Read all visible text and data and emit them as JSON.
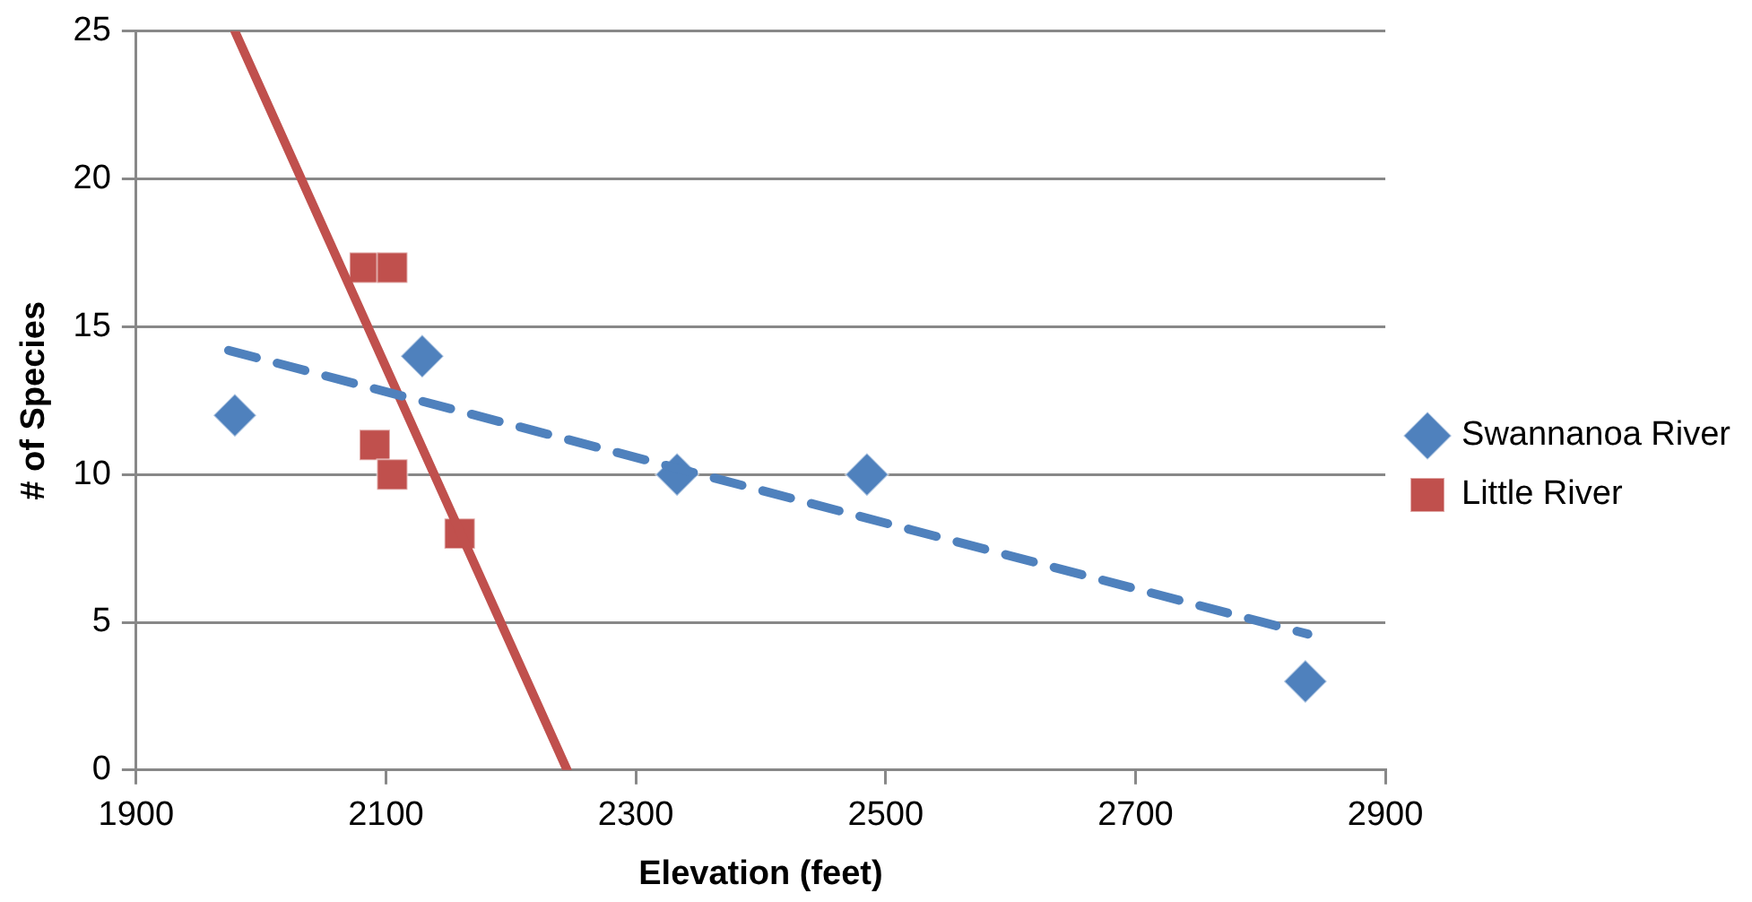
{
  "chart_data": {
    "type": "scatter",
    "xlabel": "Elevation (feet)",
    "ylabel": "# of Species",
    "xlim": [
      1900,
      2900
    ],
    "xticks": [
      1900,
      2100,
      2300,
      2500,
      2700,
      2900
    ],
    "ylim": [
      0,
      25
    ],
    "yticks": [
      0,
      5,
      10,
      15,
      20,
      25
    ],
    "grid": "y",
    "legend": "right",
    "series": [
      {
        "name": "Swannanoa River",
        "type": "scatter",
        "marker": "diamond",
        "color": "#4f81bd",
        "x": [
          1979,
          2129,
          2333,
          2485,
          2836
        ],
        "values": [
          12,
          14,
          10,
          10,
          3
        ]
      },
      {
        "name": "Little River",
        "type": "scatter",
        "marker": "square",
        "color": "#c0504d",
        "x": [
          2083,
          2105,
          2091,
          2105,
          2159
        ],
        "values": [
          17,
          17,
          11,
          10,
          8
        ]
      },
      {
        "type": "line",
        "line_style": "dashed",
        "marker": "none",
        "color": "#4f81bd",
        "x": [
          1974,
          2838
        ],
        "values": [
          14.2,
          4.6
        ]
      },
      {
        "type": "line",
        "line_style": "solid",
        "marker": "none",
        "color": "#c0504d",
        "x": [
          1979,
          2245
        ],
        "values": [
          25,
          0
        ]
      }
    ]
  }
}
